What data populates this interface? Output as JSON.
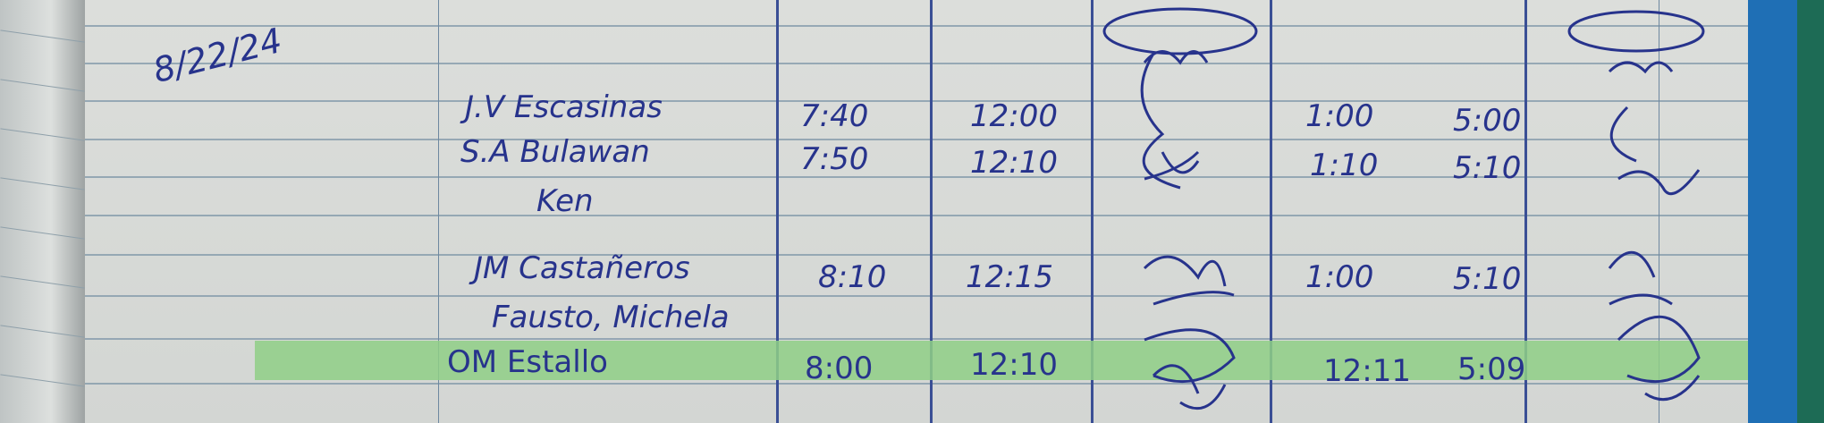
{
  "logbook": {
    "date": "8/22/24",
    "rows": [
      {
        "name": "J.V Escasinas",
        "time_in_am": "7:40",
        "time_out_am": "12:00",
        "time_in_pm": "1:00",
        "time_out_pm": "5:00"
      },
      {
        "name": "S.A Bulawan",
        "time_in_am": "7:50",
        "time_out_am": "12:10",
        "time_in_pm": "1:10",
        "time_out_pm": "5:10"
      },
      {
        "name": "Ken",
        "time_in_am": "",
        "time_out_am": "",
        "time_in_pm": "",
        "time_out_pm": ""
      },
      {
        "name": "JM Castañeros",
        "time_in_am": "8:10",
        "time_out_am": "12:15",
        "time_in_pm": "1:00",
        "time_out_pm": "5:10"
      },
      {
        "name": "Fausto, Michela",
        "time_in_am": "",
        "time_out_am": "",
        "time_in_pm": "",
        "time_out_pm": ""
      },
      {
        "name": "OM Estallo",
        "time_in_am": "8:00",
        "time_out_am": "12:10",
        "time_in_pm": "12:11",
        "time_out_pm": "5:09"
      }
    ],
    "highlight_color": "#8fcf86",
    "ink_color": "#27338c"
  }
}
